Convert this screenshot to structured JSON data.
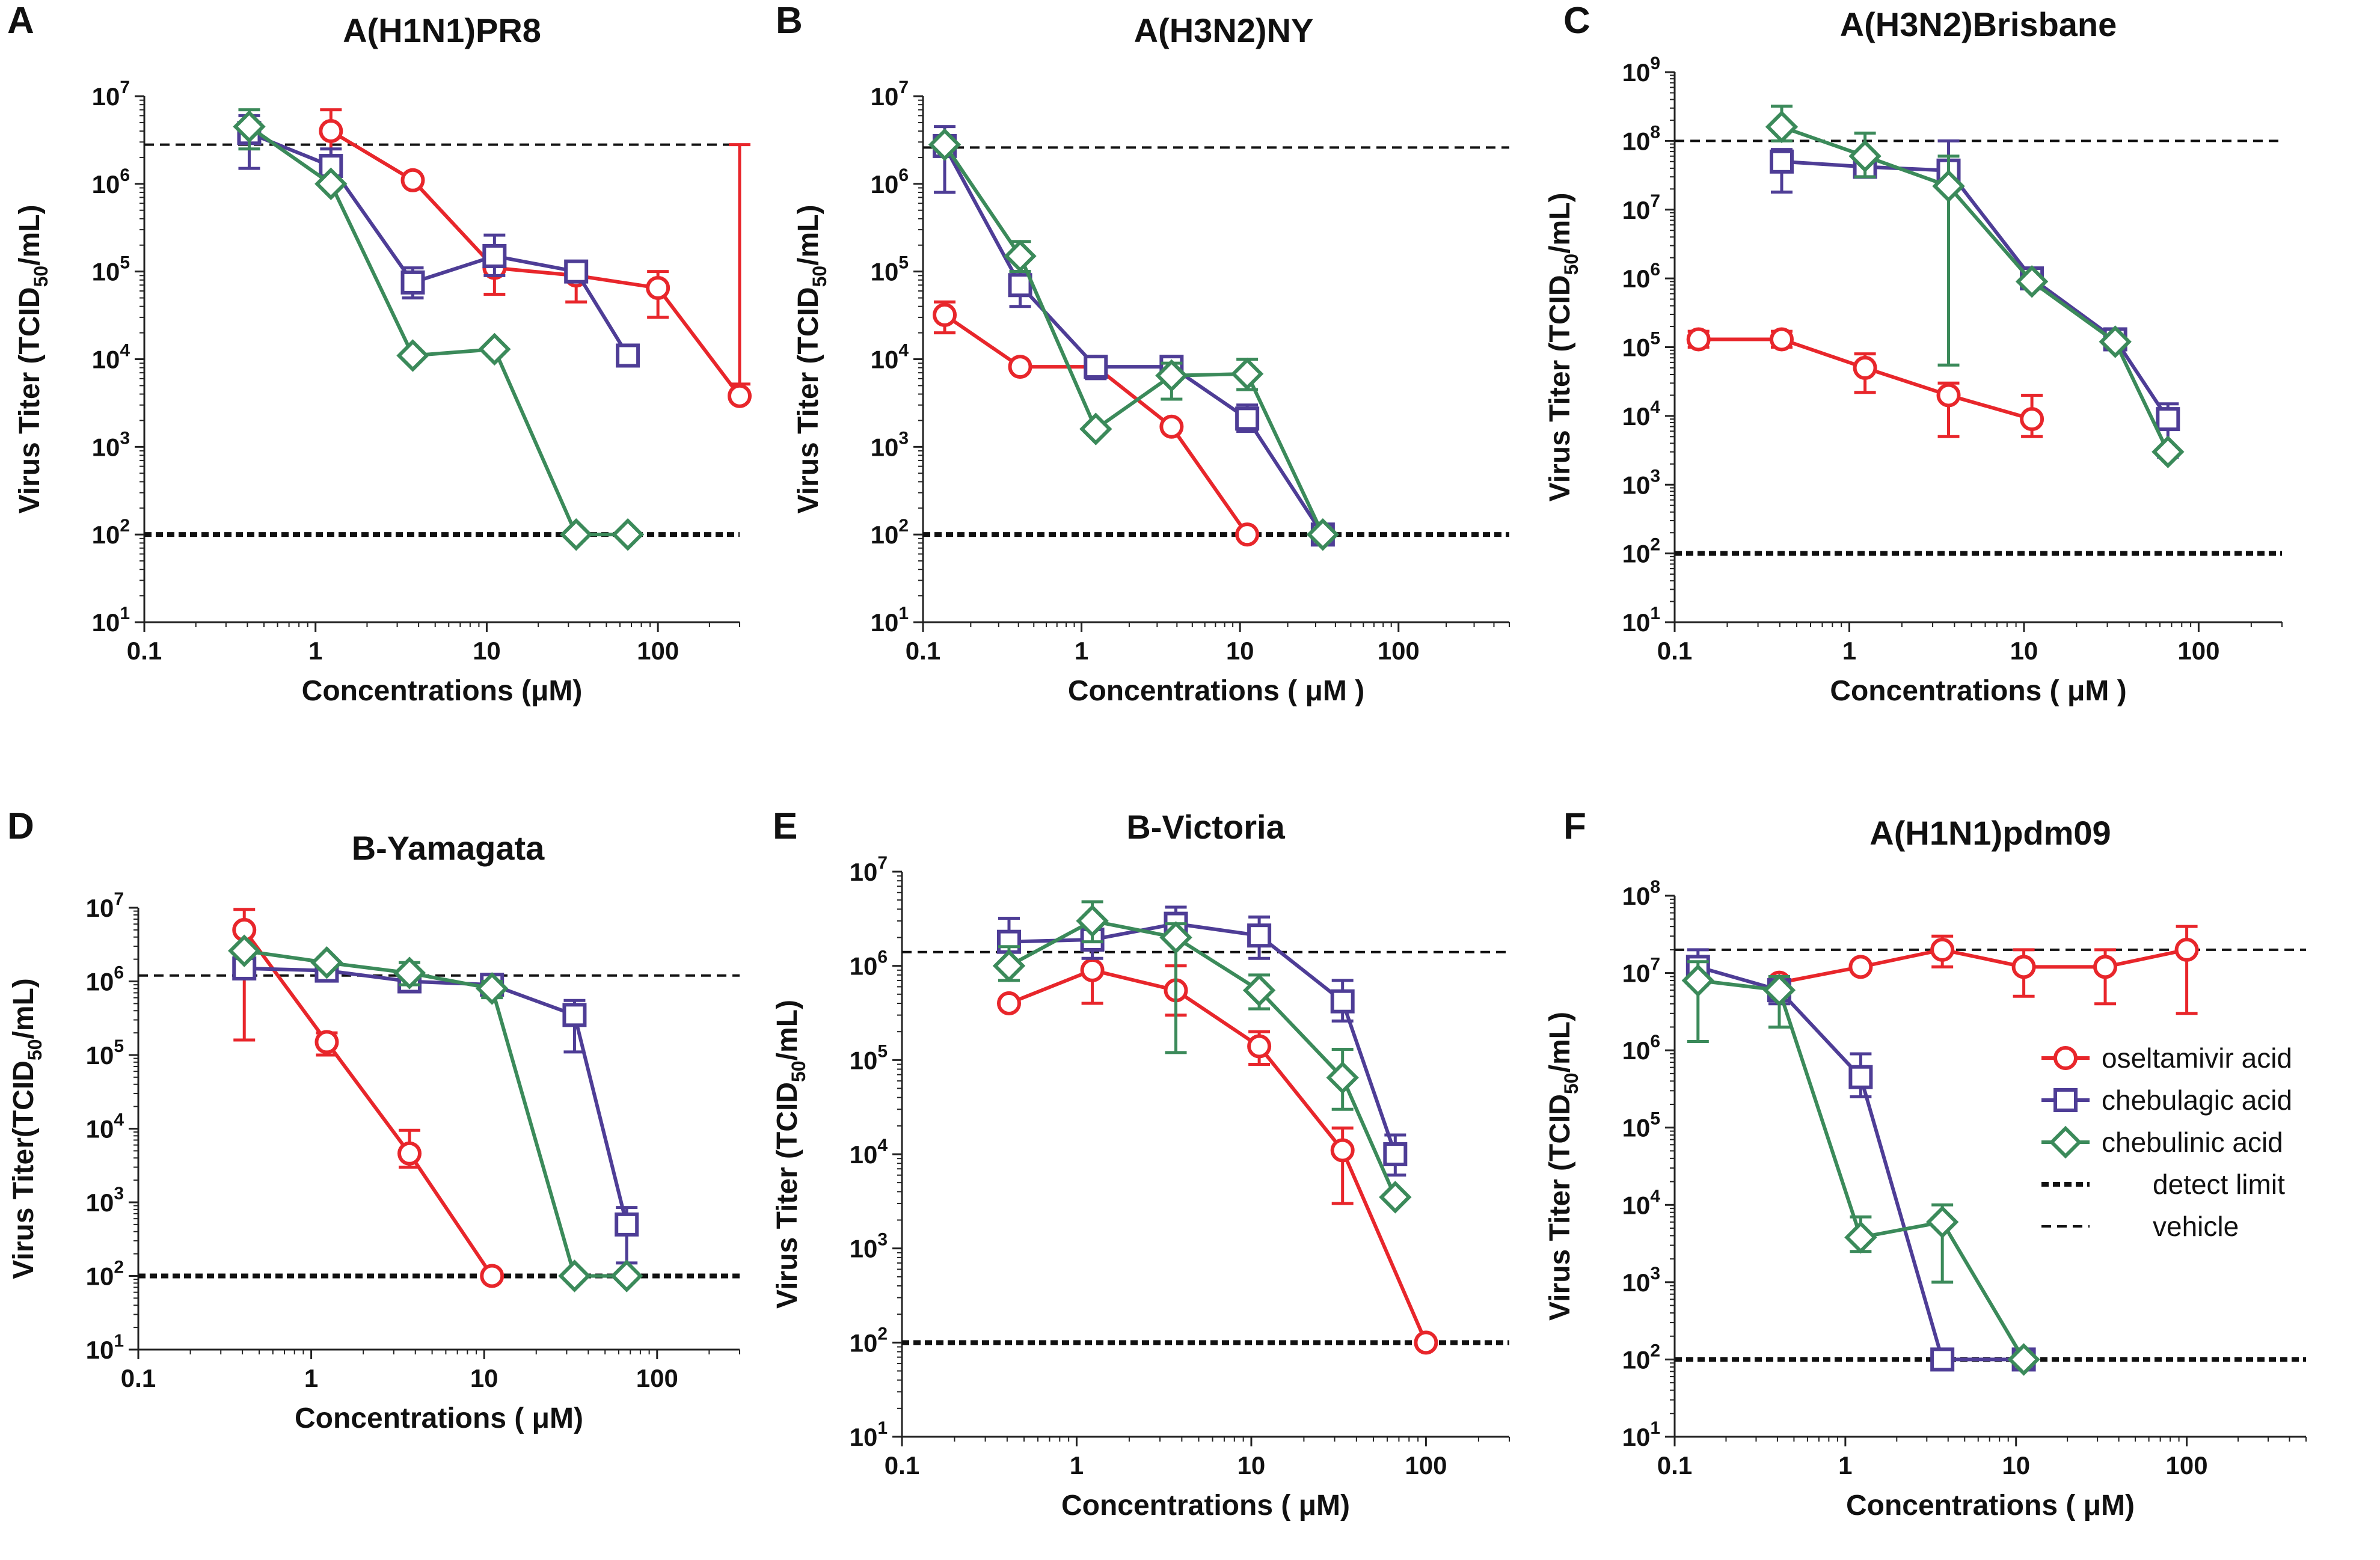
{
  "figure": {
    "legend": [
      {
        "key": "oseltamivir",
        "label": "oseltamivir acid",
        "marker": "circle",
        "color": "#e8262b"
      },
      {
        "key": "chebulagic",
        "label": "chebulagic acid",
        "marker": "square",
        "color": "#4e3d96"
      },
      {
        "key": "chebulinic",
        "label": "chebulinic acid",
        "marker": "diamond",
        "color": "#3b8a5a"
      },
      {
        "key": "detect",
        "label": "detect limit",
        "line": "detect"
      },
      {
        "key": "vehicle",
        "label": "vehicle",
        "line": "vehicle"
      }
    ]
  },
  "chart_data": [
    {
      "panel": "A",
      "type": "line",
      "title": "A(H1N1)PR8",
      "xlabel": "Concentrations (μM)",
      "ylabel": "Virus Titer (TCID",
      "xscale": "log",
      "yscale": "log",
      "xlim": [
        0.1,
        300
      ],
      "ylim": [
        10,
        10000000
      ],
      "xticks": [
        "0.1",
        "1",
        "10",
        "100"
      ],
      "yticks": [
        1,
        2,
        3,
        4,
        5,
        6,
        7
      ],
      "vehicle_line": 2800000,
      "detect_limit": 100,
      "series": [
        {
          "name": "oseltamivir acid",
          "x": [
            1.23,
            3.7,
            11.1,
            33.3,
            100,
            300
          ],
          "y": [
            4000000,
            1100000,
            110000,
            90000,
            65000,
            3800
          ],
          "err": [
            [
              2000000,
              7000000
            ],
            null,
            [
              55000,
              180000
            ],
            [
              45000,
              130000
            ],
            [
              30000,
              100000
            ],
            [
              2800000,
              5200
            ]
          ]
        },
        {
          "name": "chebulagic acid",
          "x": [
            0.41,
            1.23,
            3.7,
            11.1,
            33.3,
            66.7
          ],
          "y": [
            3800000,
            1600000,
            75000,
            150000,
            100000,
            11000
          ],
          "err": [
            [
              1500000,
              6000000
            ],
            [
              1000000,
              2500000
            ],
            [
              50000,
              110000
            ],
            [
              90000,
              260000
            ],
            null,
            null
          ]
        },
        {
          "name": "chebulinic acid",
          "x": [
            0.41,
            1.23,
            3.7,
            11.1,
            33.3,
            66.7
          ],
          "y": [
            4500000,
            1000000,
            11000,
            13000,
            100,
            100
          ],
          "err": [
            [
              2500000,
              7000000
            ],
            null,
            null,
            null,
            null,
            null
          ]
        }
      ]
    },
    {
      "panel": "B",
      "type": "line",
      "title": "A(H3N2)NY",
      "xlabel": "Concentrations ( μM )",
      "ylabel": "Virus Titer (TCID",
      "xscale": "log",
      "yscale": "log",
      "xlim": [
        0.1,
        500
      ],
      "ylim": [
        10,
        10000000
      ],
      "xticks": [
        "0.1",
        "1",
        "10",
        "100"
      ],
      "yticks": [
        1,
        2,
        3,
        4,
        5,
        6,
        7
      ],
      "vehicle_line": 2600000,
      "detect_limit": 100,
      "series": [
        {
          "name": "oseltamivir acid",
          "x": [
            0.137,
            0.41,
            1.23,
            3.7,
            11.1
          ],
          "y": [
            32000,
            8200,
            8200,
            1700,
            100
          ],
          "err": [
            [
              20000,
              45000
            ],
            null,
            null,
            null,
            null
          ]
        },
        {
          "name": "chebulagic acid",
          "x": [
            0.137,
            0.41,
            1.23,
            3.7,
            11.1,
            33.3
          ],
          "y": [
            2700000,
            70000,
            8200,
            8200,
            2100,
            100
          ],
          "err": [
            [
              800000,
              4500000
            ],
            [
              40000,
              100000
            ],
            [
              6000,
              10000
            ],
            null,
            [
              1500,
              3000
            ],
            null
          ]
        },
        {
          "name": "chebulinic acid",
          "x": [
            0.137,
            0.41,
            1.23,
            3.7,
            11.1,
            33.3
          ],
          "y": [
            2800000,
            150000,
            1600,
            6500,
            6800,
            100
          ],
          "err": [
            null,
            [
              100000,
              220000
            ],
            null,
            [
              3500,
              9000
            ],
            [
              4500,
              10000
            ],
            null
          ]
        }
      ]
    },
    {
      "panel": "C",
      "type": "line",
      "title": "A(H3N2)Brisbane",
      "xlabel": "Concentrations ( μM )",
      "ylabel": "Virus Titer (TCID",
      "xscale": "log",
      "yscale": "log",
      "xlim": [
        0.1,
        300
      ],
      "ylim": [
        10,
        1000000000
      ],
      "xticks": [
        "0.1",
        "1",
        "10",
        "100"
      ],
      "yticks": [
        1,
        2,
        3,
        4,
        5,
        6,
        7,
        8,
        9
      ],
      "vehicle_line": 100000000,
      "detect_limit": 100,
      "series": [
        {
          "name": "oseltamivir acid",
          "x": [
            0.137,
            0.41,
            1.23,
            3.7,
            11.1
          ],
          "y": [
            130000,
            130000,
            50000,
            20000,
            9000
          ],
          "err": [
            [
              100000,
              170000
            ],
            [
              100000,
              170000
            ],
            [
              22000,
              80000
            ],
            [
              5000,
              30000
            ],
            [
              5000,
              20000
            ]
          ]
        },
        {
          "name": "chebulagic acid",
          "x": [
            0.41,
            1.23,
            3.7,
            11.1,
            33.3,
            66.7
          ],
          "y": [
            50000000,
            42000000,
            37000000,
            1000000,
            130000,
            9000
          ],
          "err": [
            [
              18000000,
              75000000
            ],
            [
              30000000,
              70000000
            ],
            [
              20000000,
              100000000
            ],
            null,
            null,
            [
              2500,
              15000
            ]
          ]
        },
        {
          "name": "chebulinic acid",
          "x": [
            0.41,
            1.23,
            3.7,
            11.1,
            33.3,
            66.7
          ],
          "y": [
            160000000,
            60000000,
            22000000,
            900000,
            120000,
            3000
          ],
          "err": [
            [
              100000000,
              320000000
            ],
            [
              30000000,
              130000000
            ],
            [
              55000,
              60000000
            ],
            null,
            null,
            null
          ]
        }
      ]
    },
    {
      "panel": "D",
      "type": "line",
      "title": "B-Yamagata",
      "xlabel": "Concentrations ( μM)",
      "ylabel": "Virus Titer(TCID",
      "xscale": "log",
      "yscale": "log",
      "xlim": [
        0.1,
        300
      ],
      "ylim": [
        10,
        10000000
      ],
      "xticks": [
        "0.1",
        "1",
        "10",
        "100"
      ],
      "yticks": [
        1,
        2,
        3,
        4,
        5,
        6,
        7
      ],
      "vehicle_line": 1200000,
      "detect_limit": 100,
      "series": [
        {
          "name": "oseltamivir acid",
          "x": [
            0.41,
            1.23,
            3.7,
            11.1
          ],
          "y": [
            5000000,
            150000,
            4600,
            100
          ],
          "err": [
            [
              160000,
              9500000
            ],
            [
              100000,
              200000
            ],
            [
              3000,
              9500
            ],
            null
          ]
        },
        {
          "name": "chebulagic acid",
          "x": [
            0.41,
            1.23,
            3.7,
            11.1,
            33.3,
            66.7
          ],
          "y": [
            1500000,
            1400000,
            1000000,
            900000,
            350000,
            500
          ],
          "err": [
            null,
            null,
            [
              750000,
              1400000
            ],
            [
              700000,
              1100000
            ],
            [
              110000,
              550000
            ],
            [
              150,
              850
            ]
          ]
        },
        {
          "name": "chebulinic acid",
          "x": [
            0.41,
            1.23,
            3.7,
            11.1,
            33.3,
            66.7
          ],
          "y": [
            2600000,
            1800000,
            1300000,
            800000,
            100,
            100
          ],
          "err": [
            null,
            null,
            [
              900000,
              1800000
            ],
            [
              600000,
              1000000
            ],
            null,
            null
          ]
        }
      ]
    },
    {
      "panel": "E",
      "type": "line",
      "title": "B-Victoria",
      "xlabel": "Concentrations ( μM)",
      "ylabel": "Virus Titer (TCID",
      "xscale": "log",
      "yscale": "log",
      "xlim": [
        0.1,
        300
      ],
      "ylim": [
        10,
        10000000
      ],
      "xticks": [
        "0.1",
        "1",
        "10",
        "100"
      ],
      "yticks": [
        1,
        2,
        3,
        4,
        5,
        6,
        7
      ],
      "vehicle_line": 1400000,
      "detect_limit": 100,
      "series": [
        {
          "name": "oseltamivir acid",
          "x": [
            0.41,
            1.23,
            3.7,
            11.1,
            33.3,
            100
          ],
          "y": [
            400000,
            900000,
            550000,
            140000,
            11000,
            100
          ],
          "err": [
            null,
            [
              400000,
              1500000
            ],
            [
              300000,
              1000000
            ],
            [
              90000,
              200000
            ],
            [
              3000,
              19000
            ],
            null
          ]
        },
        {
          "name": "chebulagic acid",
          "x": [
            0.41,
            1.23,
            3.7,
            11.1,
            33.3,
            66.7
          ],
          "y": [
            1800000,
            1900000,
            2800000,
            2100000,
            420000,
            10000
          ],
          "err": [
            [
              1000000,
              3200000
            ],
            [
              1200000,
              2800000
            ],
            [
              1800000,
              4200000
            ],
            [
              1200000,
              3300000
            ],
            [
              260000,
              700000
            ],
            [
              6000,
              16000
            ]
          ]
        },
        {
          "name": "chebulinic acid",
          "x": [
            0.41,
            1.23,
            3.7,
            11.1,
            33.3,
            66.7
          ],
          "y": [
            1000000,
            3000000,
            2000000,
            550000,
            65000,
            3500
          ],
          "err": [
            [
              700000,
              1600000
            ],
            [
              1800000,
              4800000
            ],
            [
              120000,
              2800000
            ],
            [
              350000,
              800000
            ],
            [
              30000,
              130000
            ],
            null
          ]
        }
      ]
    },
    {
      "panel": "F",
      "type": "line",
      "title": "A(H1N1)pdm09",
      "xlabel": "Concentrations ( μM)",
      "ylabel": "Virus Titer (TCID",
      "xscale": "log",
      "yscale": "log",
      "xlim": [
        0.1,
        500
      ],
      "ylim": [
        10,
        100000000
      ],
      "xticks": [
        "0.1",
        "1",
        "10",
        "100"
      ],
      "yticks": [
        1,
        2,
        3,
        4,
        5,
        6,
        7,
        8
      ],
      "vehicle_line": 20000000,
      "detect_limit": 100,
      "series": [
        {
          "name": "oseltamivir acid",
          "x": [
            0.41,
            1.23,
            3.7,
            11.1,
            33.3,
            100
          ],
          "y": [
            7500000,
            12000000,
            20000000,
            12000000,
            12000000,
            20000000
          ],
          "err": [
            [
              5000000,
              9000000
            ],
            null,
            [
              12000000,
              30000000
            ],
            [
              5000000,
              20000000
            ],
            [
              4000000,
              20000000
            ],
            [
              3000000,
              40000000
            ]
          ]
        },
        {
          "name": "chebulagic acid",
          "x": [
            0.137,
            0.41,
            1.23,
            3.7,
            11.1
          ],
          "y": [
            12000000,
            6000000,
            450000,
            100,
            100
          ],
          "err": [
            [
              7000000,
              20000000
            ],
            [
              4000000,
              9000000
            ],
            [
              250000,
              900000
            ],
            null,
            null
          ]
        },
        {
          "name": "chebulinic acid",
          "x": [
            0.137,
            0.41,
            1.23,
            3.7,
            11.1
          ],
          "y": [
            8000000,
            6000000,
            3800,
            6000,
            100
          ],
          "err": [
            [
              1300000,
              14000000
            ],
            [
              2000000,
              9000000
            ],
            [
              2500,
              7000
            ],
            [
              1000,
              10000
            ],
            null
          ]
        }
      ]
    }
  ]
}
